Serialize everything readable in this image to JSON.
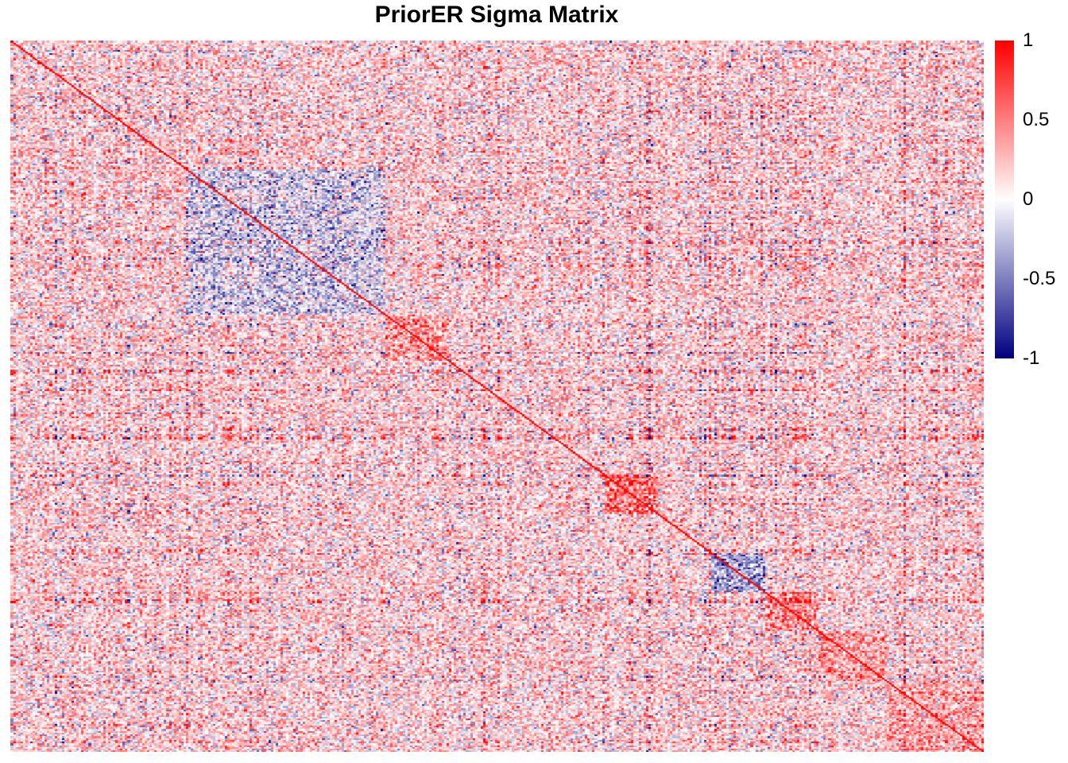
{
  "chart_data": {
    "type": "heatmap",
    "title": "PriorER Sigma Matrix",
    "xlabel": "",
    "ylabel": "",
    "color_scale": {
      "min": -1,
      "max": 1,
      "colors": {
        "low": "#000080",
        "mid": "#ffffff",
        "high": "#ff0000"
      },
      "ticks": [
        {
          "value": 1,
          "label": "1"
        },
        {
          "value": 0.5,
          "label": "0.5"
        },
        {
          "value": 0,
          "label": "0"
        },
        {
          "value": -0.5,
          "label": "-0.5"
        },
        {
          "value": -1,
          "label": "-1"
        }
      ]
    },
    "diagonal_value": 1,
    "correlated_blocks": [
      {
        "start_frac": 0.18,
        "end_frac": 0.385,
        "mean": -0.35
      },
      {
        "start_frac": 0.385,
        "end_frac": 0.45,
        "mean": 0.3
      },
      {
        "start_frac": 0.61,
        "end_frac": 0.665,
        "mean": 0.45
      },
      {
        "start_frac": 0.72,
        "end_frac": 0.775,
        "mean": -0.55
      },
      {
        "start_frac": 0.775,
        "end_frac": 0.83,
        "mean": 0.35
      },
      {
        "start_frac": 0.83,
        "end_frac": 0.9,
        "mean": 0.25
      },
      {
        "start_frac": 0.9,
        "end_frac": 1.0,
        "mean": 0.2
      }
    ]
  }
}
